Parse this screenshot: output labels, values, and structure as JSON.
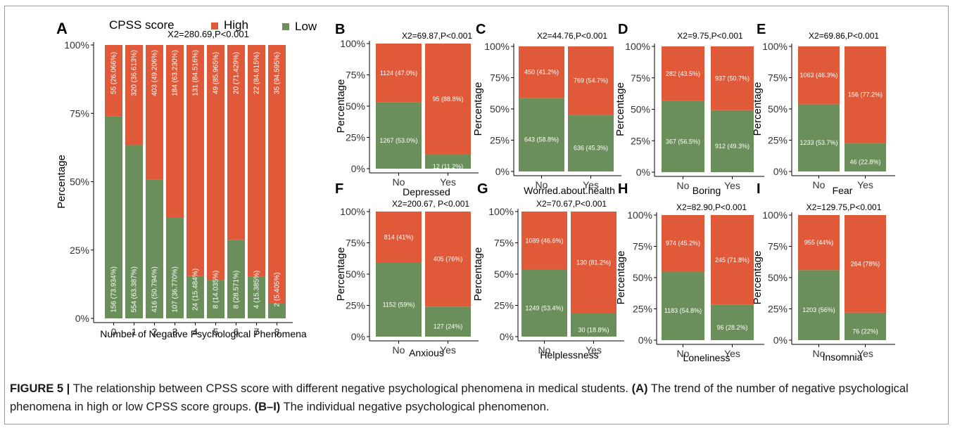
{
  "chart_data": [
    {
      "panel": "A",
      "type": "bar",
      "stacked": true,
      "legend_title": "CPSS score",
      "legend": [
        {
          "name": "High",
          "color": "#e05a3a"
        },
        {
          "name": "Low",
          "color": "#6b8f5a"
        }
      ],
      "stat": "X2=280.69,P<0.001",
      "xlabel": "Number of Negative Psychological Phenomena",
      "ylabel": "Percentage",
      "yticks": [
        "0%",
        "25%",
        "50%",
        "75%",
        "100%"
      ],
      "ylim": [
        0,
        100
      ],
      "categories": [
        "0",
        "1",
        "2",
        "3",
        "4",
        "5",
        "6",
        "7",
        "8"
      ],
      "series": [
        {
          "name": "Low",
          "values": [
            73.934,
            63.387,
            50.794,
            36.77,
            15.484,
            14.035,
            28.571,
            15.385,
            5.405
          ],
          "labels": [
            "156 (73.934%)",
            "554 (63.387%)",
            "416 (50.794%)",
            "107 (36.770%)",
            "24 (15.484%)",
            "8 (14.035%)",
            "8 (28.571%)",
            "4 (15.385%)",
            "2 (5.405%)"
          ]
        },
        {
          "name": "High",
          "values": [
            26.066,
            36.613,
            49.206,
            63.23,
            84.516,
            85.965,
            71.429,
            84.615,
            94.595
          ],
          "labels": [
            "55 (26.066%)",
            "320 (36.613%)",
            "403 (49.206%)",
            "184 (63.230%)",
            "131 (84.516%)",
            "49 (85.965%)",
            "20 (71.429%)",
            "22 (84.615%)",
            "35 (94.595%)"
          ]
        }
      ]
    },
    {
      "panel": "B",
      "type": "bar",
      "stacked": true,
      "stat": "X2=69.87,P<0.001",
      "xlabel": "Depressed",
      "ylabel": "Percentage",
      "yticks": [
        "0%",
        "25%",
        "50%",
        "75%",
        "100%"
      ],
      "ylim": [
        0,
        100
      ],
      "categories": [
        "No",
        "Yes"
      ],
      "series": [
        {
          "name": "Low",
          "values": [
            53.0,
            11.2
          ],
          "labels": [
            "1267 (53.0%)",
            "12 (11.2%)"
          ]
        },
        {
          "name": "High",
          "values": [
            47.0,
            88.8
          ],
          "labels": [
            "1124 (47.0%)",
            "95 (88.8%)"
          ]
        }
      ]
    },
    {
      "panel": "C",
      "type": "bar",
      "stacked": true,
      "stat": "X2=44.76,P<0.001",
      "xlabel": "Worried.about.health",
      "ylabel": "Percentage",
      "yticks": [
        "0%",
        "25%",
        "50%",
        "75%",
        "100%"
      ],
      "ylim": [
        0,
        100
      ],
      "categories": [
        "No",
        "Yes"
      ],
      "series": [
        {
          "name": "Low",
          "values": [
            58.8,
            45.3
          ],
          "labels": [
            "643 (58.8%)",
            "636 (45.3%)"
          ]
        },
        {
          "name": "High",
          "values": [
            41.2,
            54.7
          ],
          "labels": [
            "450 (41.2%)",
            "769 (54.7%)"
          ]
        }
      ]
    },
    {
      "panel": "D",
      "type": "bar",
      "stacked": true,
      "stat": "X2=9.75,P<0.001",
      "xlabel": "Boring",
      "ylabel": "Percentage",
      "yticks": [
        "0%",
        "25%",
        "50%",
        "75%",
        "100%"
      ],
      "ylim": [
        0,
        100
      ],
      "categories": [
        "No",
        "Yes"
      ],
      "series": [
        {
          "name": "Low",
          "values": [
            56.5,
            49.3
          ],
          "labels": [
            "367 (56.5%)",
            "912 (49.3%)"
          ]
        },
        {
          "name": "High",
          "values": [
            43.5,
            50.7
          ],
          "labels": [
            "282 (43.5%)",
            "937 (50.7%)"
          ]
        }
      ]
    },
    {
      "panel": "E",
      "type": "bar",
      "stacked": true,
      "stat": "X2=69.86,P<0.001",
      "xlabel": "Fear",
      "ylabel": "Percentage",
      "yticks": [
        "0%",
        "25%",
        "50%",
        "75%",
        "100%"
      ],
      "ylim": [
        0,
        100
      ],
      "categories": [
        "No",
        "Yes"
      ],
      "series": [
        {
          "name": "Low",
          "values": [
            53.7,
            22.8
          ],
          "labels": [
            "1233 (53.7%)",
            "46 (22.8%)"
          ]
        },
        {
          "name": "High",
          "values": [
            46.3,
            77.2
          ],
          "labels": [
            "1063 (46.3%)",
            "156 (77.2%)"
          ]
        }
      ]
    },
    {
      "panel": "F",
      "type": "bar",
      "stacked": true,
      "stat": "X2=200.67, P<0.001",
      "xlabel": "Anxious",
      "ylabel": "Percentage",
      "yticks": [
        "0%",
        "25%",
        "50%",
        "75%",
        "100%"
      ],
      "ylim": [
        0,
        100
      ],
      "categories": [
        "No",
        "Yes"
      ],
      "series": [
        {
          "name": "Low",
          "values": [
            59,
            24
          ],
          "labels": [
            "1152 (59%)",
            "127 (24%)"
          ]
        },
        {
          "name": "High",
          "values": [
            41,
            76
          ],
          "labels": [
            "814 (41%)",
            "405 (76%)"
          ]
        }
      ]
    },
    {
      "panel": "G",
      "type": "bar",
      "stacked": true,
      "stat": "X2=70.67,P<0.001",
      "xlabel": "Helplessness",
      "ylabel": "Percentage",
      "yticks": [
        "0%",
        "25%",
        "50%",
        "75%",
        "100%"
      ],
      "ylim": [
        0,
        100
      ],
      "categories": [
        "No",
        "Yes"
      ],
      "series": [
        {
          "name": "Low",
          "values": [
            53.4,
            18.8
          ],
          "labels": [
            "1249 (53.4%)",
            "30 (18.8%)"
          ]
        },
        {
          "name": "High",
          "values": [
            46.6,
            81.2
          ],
          "labels": [
            "1089 (46.6%)",
            "130 (81.2%)"
          ]
        }
      ]
    },
    {
      "panel": "H",
      "type": "bar",
      "stacked": true,
      "stat": "X2=82.90,P<0.001",
      "xlabel": "Loneliness",
      "ylabel": "Percentage",
      "yticks": [
        "0%",
        "25%",
        "50%",
        "75%",
        "100%"
      ],
      "ylim": [
        0,
        100
      ],
      "categories": [
        "No",
        "Yes"
      ],
      "series": [
        {
          "name": "Low",
          "values": [
            54.8,
            28.2
          ],
          "labels": [
            "1183 (54.8%)",
            "96 (28.2%)"
          ]
        },
        {
          "name": "High",
          "values": [
            45.2,
            71.8
          ],
          "labels": [
            "974 (45.2%)",
            "245 (71.8%)"
          ]
        }
      ]
    },
    {
      "panel": "I",
      "type": "bar",
      "stacked": true,
      "stat": "X2=129.75,P<0.001",
      "xlabel": "Insomnia",
      "ylabel": "Percentage",
      "yticks": [
        "0%",
        "25%",
        "50%",
        "75%",
        "100%"
      ],
      "ylim": [
        0,
        100
      ],
      "categories": [
        "No",
        "Yes"
      ],
      "series": [
        {
          "name": "Low",
          "values": [
            56,
            22
          ],
          "labels": [
            "1203 (56%)",
            "76 (22%)"
          ]
        },
        {
          "name": "High",
          "values": [
            44,
            78
          ],
          "labels": [
            "955 (44%)",
            "264 (78%)"
          ]
        }
      ]
    }
  ],
  "caption": {
    "label": "FIGURE 5 |",
    "text1": " The relationship between CPSS score with different negative psychological phenomena in medical students. ",
    "a_ref": "(A)",
    "text2": " The trend of the number of negative psychological phenomena in high or low CPSS score groups. ",
    "bi_ref": "(B–I)",
    "text3": " The individual negative psychological phenomenon."
  },
  "colors": {
    "high": "#e05a3a",
    "low": "#6b8f5a",
    "axis": "#000000",
    "label_text": "#ffffff"
  }
}
